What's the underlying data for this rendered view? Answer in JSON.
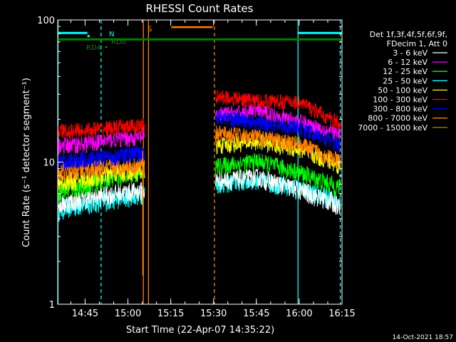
{
  "chart_data": {
    "type": "line",
    "title": "RHESSI Count Rates",
    "xlabel": "Start Time (22-Apr-07 14:35:22)",
    "ylabel": "Count Rate (s⁻¹ detector segment⁻¹)",
    "y_scale": "log",
    "ylim": [
      1,
      100
    ],
    "y_ticks": [
      {
        "value": 1,
        "label": "1"
      },
      {
        "value": 10,
        "label": "10"
      },
      {
        "value": 100,
        "label": "100"
      }
    ],
    "x_unit": "minutes since 14:35:22",
    "xlim": [
      0,
      99.6
    ],
    "x_ticks": [
      {
        "value": 9.6,
        "label": "14:45"
      },
      {
        "value": 24.6,
        "label": "15:00"
      },
      {
        "value": 39.6,
        "label": "15:15"
      },
      {
        "value": 54.6,
        "label": "15:30"
      },
      {
        "value": 69.6,
        "label": "15:45"
      },
      {
        "value": 84.6,
        "label": "16:00"
      },
      {
        "value": 99.6,
        "label": "16:15"
      }
    ],
    "legend_header": [
      "Det 1f,3f,4f,5f,6f,9f,",
      "FDecim 1, Att 0"
    ],
    "legend_position": "right",
    "gaps": [
      [
        30.4,
        55.3
      ]
    ],
    "series": [
      {
        "name": "3 - 6 keV",
        "color": "#ffffff",
        "start": [
          5.0,
          5.6,
          6.0,
          6.3
        ],
        "end": [
          7.4,
          7.8,
          6.4,
          5.0
        ]
      },
      {
        "name": "6 - 12 keV",
        "color": "#ff00ff",
        "start": [
          13.0,
          13.5,
          14.5,
          15.0
        ],
        "end": [
          21.5,
          23.0,
          19.5,
          15.5
        ]
      },
      {
        "name": "12 - 25 keV",
        "color": "#00ff00",
        "start": [
          6.2,
          6.8,
          8.0,
          8.3
        ],
        "end": [
          9.3,
          10.2,
          8.5,
          6.6
        ]
      },
      {
        "name": "25 - 50 keV",
        "color": "#00ffff",
        "start": [
          4.6,
          5.1,
          5.5,
          6.0
        ],
        "end": [
          7.0,
          7.5,
          6.4,
          5.3
        ]
      },
      {
        "name": "50 - 100 keV",
        "color": "#ffff00",
        "start": [
          7.2,
          7.6,
          8.4,
          8.8
        ],
        "end": [
          13.0,
          14.0,
          12.3,
          9.5
        ]
      },
      {
        "name": "100 - 300 keV",
        "color": "#ff0000",
        "start": [
          16.5,
          16.8,
          17.5,
          18.0
        ],
        "end": [
          29.0,
          27.0,
          26.5,
          18.5
        ]
      },
      {
        "name": "300 - 800 keV",
        "color": "#0000ff",
        "start": [
          10.0,
          10.5,
          11.0,
          11.5
        ],
        "end": [
          21.0,
          19.0,
          17.5,
          13.2
        ]
      },
      {
        "name": "800 - 7000 keV",
        "color": "#ff8000",
        "start": [
          8.5,
          9.0,
          9.2,
          9.6
        ],
        "end": [
          16.0,
          15.0,
          13.5,
          10.0
        ]
      },
      {
        "name": "7000 - 15000 keV",
        "color": "#a08000",
        "start": [],
        "end": []
      }
    ],
    "flag_lines": [
      {
        "label": "",
        "color": "#00ffff",
        "segments": [
          [
            0,
            10.4
          ],
          [
            84.0,
            99.6
          ]
        ],
        "y": 81
      },
      {
        "label": "N",
        "color": "#00ffff",
        "segments": [
          [
            10.4,
            11.2
          ]
        ],
        "y": 77
      },
      {
        "label": "S",
        "color": "#ff8000",
        "segments": [
          [
            39.8,
            54.3
          ]
        ],
        "y": 89
      },
      {
        "label": "RD0",
        "color": "#008000",
        "segments": [],
        "y": 70
      },
      {
        "label": "RD4",
        "color": "#008000",
        "segments": [],
        "y": 66
      },
      {
        "label": "",
        "color": "#008000",
        "segments": [
          [
            0,
            99.6
          ]
        ],
        "y": 73
      }
    ],
    "vertical_lines": [
      {
        "x": 0.1,
        "color": "#00ffff",
        "dashed": false
      },
      {
        "x": 15.2,
        "color": "#00ffff",
        "dashed": true
      },
      {
        "x": 30.0,
        "color": "#ff8000",
        "dashed": false
      },
      {
        "x": 31.8,
        "color": "#ff8000",
        "dashed": false
      },
      {
        "x": 54.9,
        "color": "#ff8000",
        "dashed": true
      },
      {
        "x": 84.2,
        "color": "#00ffff",
        "dashed": false
      },
      {
        "x": 99.0,
        "color": "#00ffff",
        "dashed": true
      }
    ],
    "decay_spike": {
      "color": "#ff8000",
      "x": 29.8,
      "from": 12.0,
      "to": 1.6
    },
    "timestamp": "14-Oct-2021 18:57"
  }
}
